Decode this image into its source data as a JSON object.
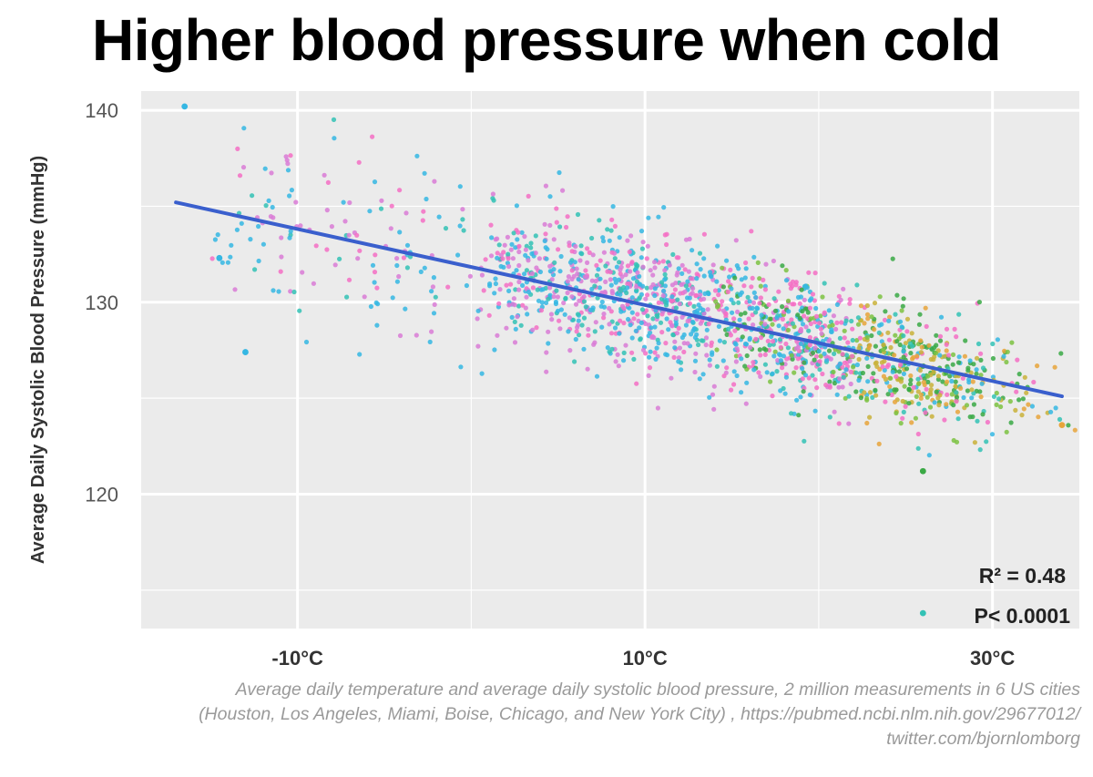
{
  "header": {
    "title": "Higher blood pressure when cold"
  },
  "caption": {
    "line1": "Average daily temperature and average daily systolic blood pressure, 2 million measurements in 6 US cities",
    "line2": "(Houston, Los Angeles, Miami, Boise, Chicago, and New York City) , https://pubmed.ncbi.nlm.nih.gov/29677012/",
    "line3": "twitter.com/bjornlomborg"
  },
  "colors": {
    "panel": "#ebebeb",
    "grid": "#ffffff",
    "trend": "#3a5fcd",
    "palette": [
      "#f56fc4",
      "#d97bd6",
      "#35b7e3",
      "#33c2b5",
      "#7cc242",
      "#3aa945",
      "#c9b23a",
      "#e7a53b"
    ]
  },
  "chart_data": {
    "type": "scatter",
    "title": "Higher blood pressure when cold",
    "xlabel": "",
    "ylabel": "Average Daily Systolic Blood Pressure (mmHg)",
    "xlim": [
      -19,
      35
    ],
    "ylim": [
      113,
      141
    ],
    "x_ticks": [
      -10,
      10,
      30
    ],
    "x_tick_labels": [
      "-10°C",
      "10°C",
      "30°C"
    ],
    "y_ticks": [
      120,
      130,
      140
    ],
    "y_tick_labels": [
      "120",
      "130",
      "140"
    ],
    "grid": true,
    "trend_line": {
      "x": [
        -17,
        34
      ],
      "y": [
        135.2,
        125.1
      ]
    },
    "annotations": {
      "r2": "R² = 0.48",
      "p": "P< 0.0001"
    },
    "notable_points": [
      {
        "x": -16.5,
        "y": 140.2
      },
      {
        "x": -14.5,
        "y": 132.3
      },
      {
        "x": -13,
        "y": 127.4
      },
      {
        "x": 26,
        "y": 121.2
      },
      {
        "x": 26,
        "y": 113.8
      },
      {
        "x": 34,
        "y": 123.6
      }
    ],
    "density_clusters": [
      {
        "x_center": 10,
        "y_center": 130.5,
        "count": 260,
        "note": "purple/blue/pink cluster"
      },
      {
        "x_center": 20,
        "y_center": 128,
        "count": 330,
        "note": "mixed colors"
      },
      {
        "x_center": 26,
        "y_center": 126.3,
        "count": 420,
        "note": "green/orange dense region"
      }
    ]
  }
}
